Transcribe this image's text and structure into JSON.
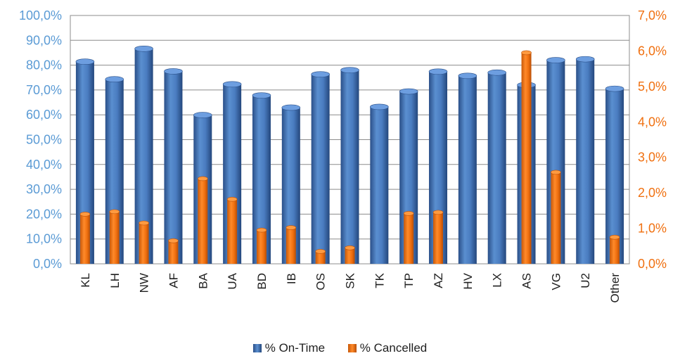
{
  "chart_data": {
    "type": "bar",
    "categories": [
      "KL",
      "LH",
      "NW",
      "AF",
      "BA",
      "UA",
      "BD",
      "IB",
      "OS",
      "SK",
      "TK",
      "TP",
      "AZ",
      "HV",
      "LX",
      "AS",
      "VG",
      "U2",
      "Other"
    ],
    "series": [
      {
        "name": "% On-Time",
        "axis": "left",
        "color": "#3c6bb0",
        "values": [
          81.4,
          74.3,
          86.6,
          77.5,
          59.9,
          72.3,
          67.8,
          62.9,
          76.3,
          78.0,
          63.2,
          69.4,
          77.4,
          75.7,
          77.0,
          72.0,
          82.0,
          82.4,
          70.5
        ]
      },
      {
        "name": "% Cancelled",
        "axis": "right",
        "color": "#f07010",
        "values": [
          1.4,
          1.47,
          1.15,
          0.65,
          2.4,
          1.82,
          0.95,
          1.02,
          0.35,
          0.45,
          0.0,
          1.42,
          1.45,
          0.0,
          0.0,
          5.95,
          2.58,
          0.0,
          0.75
        ]
      }
    ],
    "y_left": {
      "min": 0,
      "max": 100,
      "step": 10,
      "ticks": [
        "0,0%",
        "10,0%",
        "20,0%",
        "30,0%",
        "40,0%",
        "50,0%",
        "60,0%",
        "70,0%",
        "80,0%",
        "90,0%",
        "100,0%"
      ]
    },
    "y_right": {
      "min": 0,
      "max": 7,
      "step": 1,
      "ticks": [
        "0,0%",
        "1,0%",
        "2,0%",
        "3,0%",
        "4,0%",
        "5,0%",
        "6,0%",
        "7,0%"
      ]
    },
    "grid": true,
    "legend_position": "bottom-center",
    "title": "",
    "xlabel": "",
    "ylabel": ""
  }
}
